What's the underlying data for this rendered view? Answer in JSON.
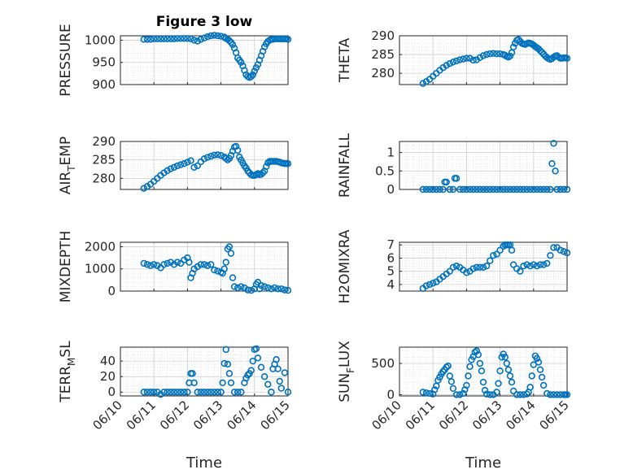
{
  "figure": {
    "title": "Figure 3 low",
    "marker_color": "#0072bd",
    "x_tick_labels": [
      "06/10",
      "06/11",
      "06/12",
      "06/13",
      "06/14",
      "06/15"
    ],
    "x_label": "Time",
    "grid": true
  },
  "chart_data": [
    {
      "type": "scatter",
      "name": "pressure",
      "ylabel": "PRESSURE",
      "ylabel_main": "PRESSURE",
      "ylabel_sub": "",
      "ylabel_post": "",
      "xlim": [
        0,
        5
      ],
      "ylim": [
        900,
        1010
      ],
      "yticks": [
        900,
        950,
        1000
      ],
      "x": [
        0.7,
        0.8,
        0.9,
        1.0,
        1.1,
        1.2,
        1.3,
        1.4,
        1.5,
        1.6,
        1.7,
        1.8,
        1.9,
        2.0,
        2.1,
        2.2,
        2.3,
        2.4,
        2.5,
        2.6,
        2.7,
        2.8,
        2.9,
        3.0,
        3.1,
        3.15,
        3.2,
        3.25,
        3.3,
        3.35,
        3.4,
        3.45,
        3.5,
        3.55,
        3.6,
        3.65,
        3.7,
        3.75,
        3.8,
        3.85,
        3.9,
        3.95,
        4.0,
        4.05,
        4.1,
        4.15,
        4.2,
        4.25,
        4.3,
        4.35,
        4.4,
        4.45,
        4.5,
        4.55,
        4.6,
        4.65,
        4.7,
        4.75,
        4.8,
        4.85,
        4.9,
        4.95,
        5.0
      ],
      "y": [
        1002,
        1002,
        1002,
        1003,
        1003,
        1003,
        1003,
        1003,
        1003,
        1003,
        1004,
        1004,
        1004,
        1004,
        1003,
        1000,
        998,
        1002,
        1005,
        1008,
        1010,
        1011,
        1010,
        1009,
        1007,
        1004,
        1002,
        999,
        995,
        990,
        982,
        972,
        960,
        955,
        950,
        942,
        932,
        922,
        918,
        916,
        918,
        922,
        930,
        938,
        945,
        955,
        965,
        975,
        985,
        992,
        997,
        1000,
        1002,
        1002,
        1003,
        1003,
        1003,
        1003,
        1003,
        1003,
        1003,
        1003,
        1002
      ]
    },
    {
      "type": "scatter",
      "name": "theta",
      "ylabel": "THETA",
      "ylabel_main": "THETA",
      "ylabel_sub": "",
      "ylabel_post": "",
      "xlim": [
        0,
        5
      ],
      "ylim": [
        277,
        290
      ],
      "yticks": [
        280,
        285,
        290
      ],
      "x": [
        0.7,
        0.8,
        0.9,
        1.0,
        1.1,
        1.2,
        1.3,
        1.4,
        1.5,
        1.6,
        1.7,
        1.8,
        1.9,
        2.0,
        2.1,
        2.2,
        2.3,
        2.4,
        2.5,
        2.6,
        2.7,
        2.8,
        2.9,
        3.0,
        3.1,
        3.15,
        3.2,
        3.25,
        3.3,
        3.35,
        3.4,
        3.45,
        3.5,
        3.55,
        3.6,
        3.65,
        3.7,
        3.75,
        3.8,
        3.85,
        3.9,
        3.95,
        4.0,
        4.05,
        4.1,
        4.15,
        4.2,
        4.25,
        4.3,
        4.35,
        4.4,
        4.45,
        4.5,
        4.55,
        4.6,
        4.65,
        4.7,
        4.75,
        4.8,
        4.85,
        4.9,
        4.95,
        5.0
      ],
      "y": [
        277.3,
        277.8,
        278.4,
        279.2,
        280.0,
        280.8,
        281.5,
        282.1,
        282.6,
        283.0,
        283.3,
        283.6,
        283.8,
        284.0,
        284.0,
        283.5,
        283.6,
        284.2,
        284.7,
        285.0,
        285.2,
        285.3,
        285.2,
        285.2,
        285.0,
        284.8,
        284.5,
        284.3,
        284.6,
        285.5,
        287.0,
        288.0,
        288.8,
        289.0,
        288.5,
        288.0,
        287.8,
        287.7,
        287.9,
        288.1,
        288.0,
        287.8,
        287.5,
        287.1,
        286.8,
        286.5,
        286.0,
        285.6,
        285.1,
        284.6,
        284.2,
        283.9,
        283.7,
        283.9,
        284.3,
        284.6,
        284.7,
        284.3,
        284.0,
        284.0,
        284.1,
        284.1,
        284.0
      ]
    },
    {
      "type": "scatter",
      "name": "air_temp",
      "ylabel": "AIR_TEMP",
      "ylabel_main": "AIR",
      "ylabel_sub": "T",
      "ylabel_post": "EMP",
      "xlim": [
        0,
        5
      ],
      "ylim": [
        277,
        290
      ],
      "yticks": [
        280,
        285,
        290
      ],
      "x": [
        0.7,
        0.8,
        0.9,
        1.0,
        1.1,
        1.2,
        1.3,
        1.4,
        1.5,
        1.6,
        1.7,
        1.8,
        1.9,
        2.0,
        2.1,
        2.2,
        2.3,
        2.4,
        2.5,
        2.6,
        2.7,
        2.8,
        2.9,
        3.0,
        3.1,
        3.15,
        3.2,
        3.25,
        3.3,
        3.35,
        3.4,
        3.45,
        3.5,
        3.55,
        3.6,
        3.65,
        3.7,
        3.75,
        3.8,
        3.85,
        3.9,
        3.95,
        4.0,
        4.05,
        4.1,
        4.15,
        4.2,
        4.25,
        4.3,
        4.35,
        4.4,
        4.45,
        4.5,
        4.55,
        4.6,
        4.65,
        4.7,
        4.75,
        4.8,
        4.85,
        4.9,
        4.95,
        5.0
      ],
      "y": [
        277.3,
        277.8,
        278.4,
        279.2,
        280.0,
        280.8,
        281.5,
        282.1,
        282.6,
        283.0,
        283.4,
        283.7,
        284.0,
        284.4,
        284.8,
        283.0,
        283.4,
        284.5,
        285.3,
        285.7,
        286.0,
        286.3,
        286.4,
        286.2,
        285.8,
        285.4,
        285.0,
        285.4,
        286.2,
        287.4,
        288.5,
        288.7,
        287.6,
        285.8,
        285.0,
        284.2,
        283.4,
        282.8,
        282.0,
        281.5,
        281.0,
        280.8,
        280.8,
        281.0,
        281.3,
        281.0,
        281.1,
        281.5,
        282.0,
        283.2,
        284.2,
        284.6,
        284.6,
        284.6,
        284.6,
        284.6,
        284.5,
        284.4,
        284.2,
        284.1,
        284.0,
        284.0,
        284.0
      ]
    },
    {
      "type": "scatter",
      "name": "rainfall",
      "ylabel": "RAINFALL",
      "ylabel_main": "RAINFALL",
      "ylabel_sub": "",
      "ylabel_post": "",
      "xlim": [
        0,
        5
      ],
      "ylim": [
        0,
        1.3
      ],
      "yticks": [
        0,
        0.5,
        1
      ],
      "x": [
        0.7,
        0.8,
        0.9,
        1.0,
        1.1,
        1.2,
        1.3,
        1.35,
        1.4,
        1.5,
        1.6,
        1.65,
        1.7,
        1.8,
        1.9,
        2.0,
        2.1,
        2.2,
        2.3,
        2.4,
        2.5,
        2.6,
        2.7,
        2.8,
        2.9,
        3.0,
        3.1,
        3.2,
        3.3,
        3.4,
        3.5,
        3.6,
        3.7,
        3.8,
        3.9,
        4.0,
        4.1,
        4.2,
        4.3,
        4.4,
        4.5,
        4.55,
        4.6,
        4.65,
        4.7,
        4.8,
        4.9,
        5.0
      ],
      "y": [
        0,
        0,
        0,
        0,
        0,
        0,
        0,
        0.2,
        0.2,
        0,
        0,
        0.3,
        0.3,
        0,
        0,
        0,
        0,
        0,
        0,
        0,
        0,
        0,
        0,
        0,
        0,
        0,
        0,
        0,
        0,
        0,
        0,
        0,
        0,
        0,
        0,
        0,
        0,
        0,
        0,
        0,
        0,
        0.7,
        1.25,
        0.5,
        0,
        0,
        0,
        0
      ]
    },
    {
      "type": "scatter",
      "name": "mixdepth",
      "ylabel": "MIXDEPTH",
      "ylabel_main": "MIXDEPTH",
      "ylabel_sub": "",
      "ylabel_post": "",
      "xlim": [
        0,
        5
      ],
      "ylim": [
        0,
        2200
      ],
      "yticks": [
        0,
        1000,
        2000
      ],
      "x": [
        0.7,
        0.8,
        0.9,
        1.0,
        1.1,
        1.2,
        1.3,
        1.4,
        1.5,
        1.6,
        1.7,
        1.8,
        1.9,
        2.0,
        2.05,
        2.1,
        2.15,
        2.2,
        2.3,
        2.4,
        2.5,
        2.6,
        2.7,
        2.8,
        2.9,
        3.0,
        3.05,
        3.1,
        3.15,
        3.2,
        3.25,
        3.3,
        3.35,
        3.4,
        3.5,
        3.6,
        3.7,
        3.8,
        3.9,
        4.0,
        4.05,
        4.1,
        4.15,
        4.2,
        4.3,
        4.4,
        4.5,
        4.6,
        4.7,
        4.8,
        4.9,
        5.0
      ],
      "y": [
        1250,
        1200,
        1150,
        1200,
        1150,
        1050,
        1200,
        1250,
        1300,
        1200,
        1300,
        1250,
        1400,
        1500,
        1300,
        600,
        800,
        1000,
        1100,
        1200,
        1200,
        1150,
        1200,
        950,
        900,
        850,
        800,
        1000,
        1300,
        1900,
        2000,
        1700,
        600,
        200,
        150,
        200,
        150,
        50,
        30,
        100,
        300,
        400,
        100,
        250,
        200,
        150,
        100,
        150,
        100,
        100,
        50,
        30
      ]
    },
    {
      "type": "scatter",
      "name": "h2omixra",
      "ylabel": "H2OMIXRA",
      "ylabel_main": "H2OMIXRA",
      "ylabel_sub": "",
      "ylabel_post": "",
      "xlim": [
        0,
        5
      ],
      "ylim": [
        3.5,
        7.2
      ],
      "yticks": [
        4,
        5,
        6,
        7
      ],
      "x": [
        0.7,
        0.8,
        0.9,
        1.0,
        1.1,
        1.2,
        1.3,
        1.4,
        1.5,
        1.6,
        1.7,
        1.8,
        1.9,
        2.0,
        2.1,
        2.2,
        2.3,
        2.4,
        2.5,
        2.6,
        2.7,
        2.8,
        2.9,
        3.0,
        3.1,
        3.15,
        3.2,
        3.25,
        3.3,
        3.35,
        3.4,
        3.5,
        3.6,
        3.7,
        3.8,
        3.9,
        4.0,
        4.1,
        4.2,
        4.3,
        4.4,
        4.5,
        4.6,
        4.7,
        4.8,
        4.9,
        5.0
      ],
      "y": [
        3.7,
        3.9,
        4.0,
        4.1,
        4.2,
        4.4,
        4.6,
        4.8,
        5.0,
        5.3,
        5.4,
        5.3,
        5.1,
        4.9,
        5.0,
        5.2,
        5.3,
        5.3,
        5.3,
        5.4,
        5.8,
        6.2,
        6.3,
        6.6,
        6.9,
        7.0,
        7.0,
        7.0,
        7.0,
        6.6,
        5.5,
        5.2,
        5.0,
        5.4,
        5.5,
        5.4,
        5.5,
        5.4,
        5.5,
        5.5,
        5.6,
        6.2,
        6.8,
        6.8,
        6.6,
        6.5,
        6.4
      ]
    },
    {
      "type": "scatter",
      "name": "terr_msl",
      "ylabel": "TERR_MSL",
      "ylabel_main": "TERR",
      "ylabel_sub": "M",
      "ylabel_post": "SL",
      "xlim": [
        0,
        5
      ],
      "ylim": [
        -5,
        58
      ],
      "yticks": [
        0,
        20,
        40
      ],
      "x": [
        0.7,
        0.8,
        0.9,
        1.0,
        1.1,
        1.2,
        1.3,
        1.4,
        1.5,
        1.6,
        1.7,
        1.8,
        1.9,
        2.0,
        2.05,
        2.1,
        2.15,
        2.2,
        2.3,
        2.4,
        2.5,
        2.6,
        2.7,
        2.8,
        2.9,
        3.0,
        3.05,
        3.1,
        3.15,
        3.2,
        3.25,
        3.3,
        3.4,
        3.5,
        3.6,
        3.7,
        3.75,
        3.8,
        3.85,
        3.9,
        3.95,
        4.0,
        4.05,
        4.1,
        4.2,
        4.3,
        4.4,
        4.5,
        4.55,
        4.6,
        4.65,
        4.7,
        4.75,
        4.8,
        4.9,
        5.0
      ],
      "y": [
        0,
        0,
        0,
        0,
        0,
        -3,
        0,
        0,
        0,
        0,
        0,
        0,
        0,
        0,
        12,
        24,
        24,
        12,
        0,
        0,
        0,
        0,
        0,
        0,
        0,
        0,
        12,
        37,
        55,
        36,
        24,
        12,
        0,
        0,
        0,
        12,
        18,
        22,
        24,
        28,
        40,
        55,
        56,
        44,
        32,
        20,
        10,
        0,
        30,
        36,
        42,
        30,
        14,
        5,
        25,
        0
      ]
    },
    {
      "type": "scatter",
      "name": "sun_flux",
      "ylabel": "SUN_FLUX",
      "ylabel_main": "SUN",
      "ylabel_sub": "F",
      "ylabel_post": "LUX",
      "xlim": [
        0,
        5
      ],
      "ylim": [
        -20,
        760
      ],
      "yticks": [
        0,
        500
      ],
      "x": [
        0.7,
        0.8,
        0.9,
        1.0,
        1.05,
        1.1,
        1.15,
        1.2,
        1.25,
        1.3,
        1.35,
        1.4,
        1.45,
        1.5,
        1.55,
        1.6,
        1.7,
        1.8,
        1.9,
        1.95,
        2.0,
        2.05,
        2.1,
        2.15,
        2.2,
        2.25,
        2.3,
        2.35,
        2.4,
        2.45,
        2.5,
        2.55,
        2.6,
        2.7,
        2.8,
        2.9,
        2.95,
        3.0,
        3.05,
        3.1,
        3.15,
        3.2,
        3.25,
        3.3,
        3.35,
        3.4,
        3.5,
        3.6,
        3.7,
        3.8,
        3.85,
        3.9,
        3.95,
        4.0,
        4.05,
        4.1,
        4.15,
        4.2,
        4.25,
        4.3,
        4.4,
        4.5,
        4.6,
        4.7,
        4.8,
        4.9,
        4.95,
        5.0
      ],
      "y": [
        40,
        30,
        20,
        10,
        80,
        140,
        230,
        280,
        330,
        370,
        400,
        440,
        460,
        300,
        210,
        100,
        0,
        0,
        20,
        80,
        150,
        300,
        450,
        560,
        610,
        680,
        700,
        640,
        500,
        380,
        200,
        70,
        10,
        0,
        0,
        40,
        180,
        380,
        600,
        650,
        600,
        500,
        400,
        300,
        200,
        60,
        0,
        0,
        0,
        10,
        40,
        120,
        300,
        480,
        620,
        580,
        520,
        400,
        280,
        150,
        20,
        0,
        0,
        0,
        0,
        0,
        0,
        0
      ]
    }
  ]
}
